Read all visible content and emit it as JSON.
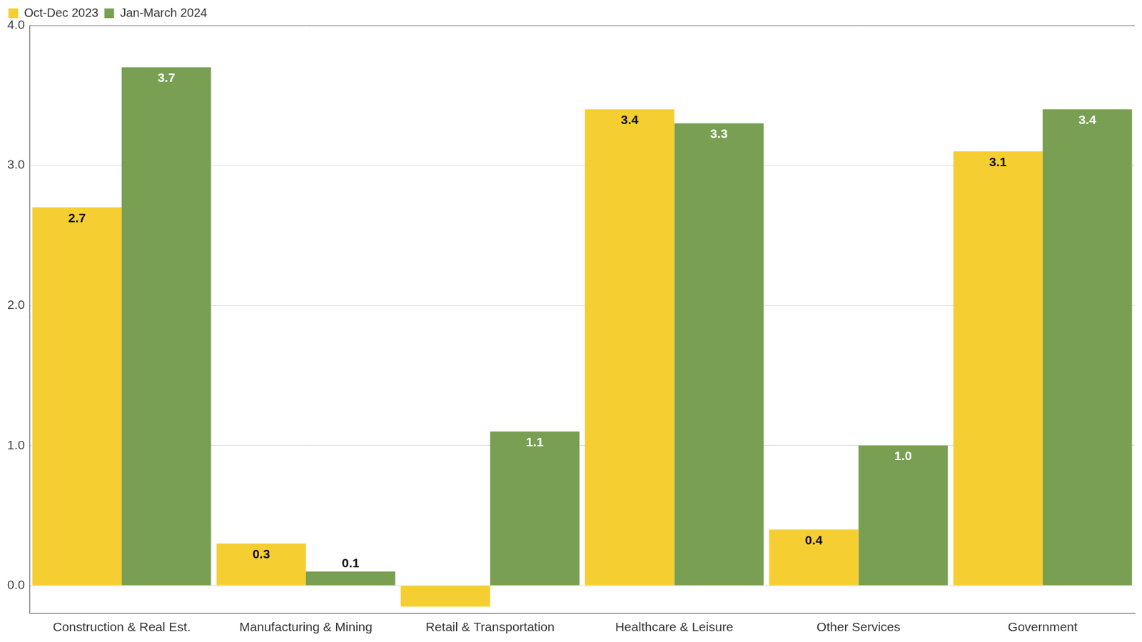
{
  "chart_data": {
    "type": "bar",
    "categories": [
      "Construction & Real Est.",
      "Manufacturing & Mining",
      "Retail & Transportation",
      "Healthcare & Leisure",
      "Other Services",
      "Government"
    ],
    "series": [
      {
        "name": "Oct-Dec 2023",
        "color": "#F5CE32",
        "values": [
          2.7,
          0.3,
          -0.15,
          3.4,
          0.4,
          3.1
        ],
        "value_labels": [
          "2.7",
          "0.3",
          null,
          "3.4",
          "0.4",
          "3.1"
        ]
      },
      {
        "name": "Jan-March 2024",
        "color": "#789F52",
        "values": [
          3.7,
          0.1,
          1.1,
          3.3,
          1.0,
          3.4
        ],
        "value_labels": [
          "3.7",
          "0.1",
          "1.1",
          "3.3",
          "1.0",
          "3.4"
        ]
      }
    ],
    "ylim": [
      -0.2,
      4
    ],
    "yticks": [
      {
        "value": 0,
        "label": "0.0"
      },
      {
        "value": 1,
        "label": "1.0"
      },
      {
        "value": 2,
        "label": "2.0"
      },
      {
        "value": 3,
        "label": "3.0"
      },
      {
        "value": 4,
        "label": "4.0"
      }
    ],
    "grid": true,
    "legend": "top-left",
    "data_labels": true
  }
}
